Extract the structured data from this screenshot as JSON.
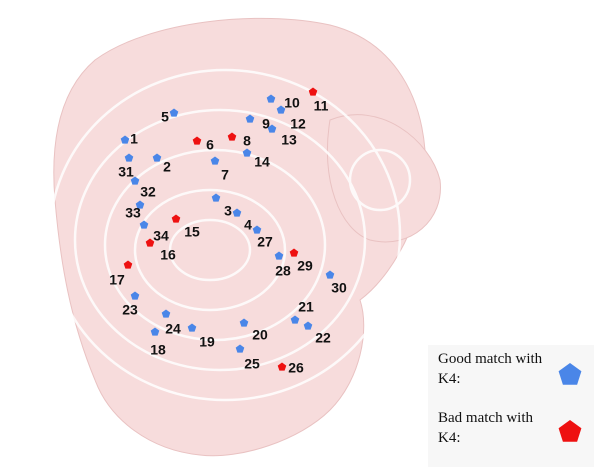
{
  "groups": [
    {
      "label": "Good match with K4:",
      "color": "#4a86e8",
      "markers": [
        "1",
        "2",
        "3",
        "4",
        "5",
        "7",
        "9",
        "10",
        "12",
        "13",
        "14",
        "18",
        "19",
        "20",
        "21",
        "22",
        "23",
        "24",
        "25",
        "27",
        "28",
        "30",
        "31",
        "32",
        "33",
        "34"
      ]
    },
    {
      "label": "Bad match with K4:",
      "color": "#ee1111",
      "markers": [
        "6",
        "8",
        "11",
        "15",
        "16",
        "17",
        "26",
        "29"
      ]
    }
  ]
}
